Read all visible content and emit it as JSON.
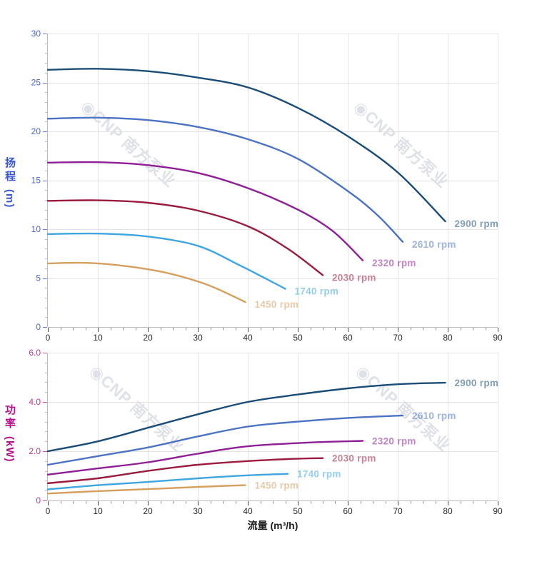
{
  "panel": {
    "background": "#ffffff"
  },
  "axis_titles": {
    "head_label": "扬程",
    "head_unit": "(m)",
    "power_label": "功率",
    "power_unit": "(kW)",
    "x_title": "流量 (m³/h)"
  },
  "watermark": {
    "icon": "cnp-logo-icon",
    "logo_glyph": "◉",
    "text": "CNP 南方泵业",
    "color": "#dfe1e8"
  },
  "style": {
    "grid_color": "#e3e3e5",
    "axis_line_color": "#bcbcbe",
    "x_tick_color": "#4a4a4a",
    "x_minor_tick_color": "#8a8a8a",
    "x_label_color": "#2a2a2a",
    "head_axis_color": "#4565dd",
    "power_axis_color": "#cb2f97",
    "series_label_opacity": 0.55
  },
  "chart_data": [
    {
      "type": "line",
      "id": "head",
      "ylabel": "扬程 (m)",
      "xlabel": "流量 (m³/h)",
      "xlim": [
        0,
        90
      ],
      "ylim": [
        0,
        30
      ],
      "xticks": [
        0,
        10,
        20,
        30,
        40,
        50,
        60,
        70,
        80,
        90
      ],
      "xticklabels": [
        "0",
        "10",
        "20",
        "30",
        "40",
        "50",
        "60",
        "70",
        "80",
        "90"
      ],
      "x_minor_step": 2.5,
      "yticks": [
        0,
        5,
        10,
        15,
        20,
        25,
        30
      ],
      "yticklabels": [
        "0",
        "5",
        "10",
        "15",
        "20",
        "25",
        "30"
      ],
      "y_minor_step": 1,
      "grid": true,
      "legend_position": "inline-end-labels",
      "series": [
        {
          "name": "2900 rpm",
          "color": "#1a4c78",
          "x": [
            0,
            10,
            20,
            30,
            40,
            50,
            60,
            70,
            79.5
          ],
          "y": [
            26.3,
            26.4,
            26.15,
            25.5,
            24.5,
            22.4,
            19.5,
            15.8,
            10.8
          ]
        },
        {
          "name": "2610 rpm",
          "color": "#4b72c4",
          "x": [
            0,
            10,
            20,
            30,
            40,
            50,
            60,
            66,
            71
          ],
          "y": [
            21.3,
            21.4,
            21.15,
            20.45,
            19.2,
            17.2,
            13.9,
            11.4,
            8.7
          ]
        },
        {
          "name": "2320 rpm",
          "color": "#8e1e96",
          "x": [
            0,
            10,
            20,
            30,
            40,
            50,
            57,
            63
          ],
          "y": [
            16.8,
            16.85,
            16.55,
            15.75,
            14.2,
            12.0,
            9.8,
            6.8
          ]
        },
        {
          "name": "2030 rpm",
          "color": "#9b1b3f",
          "x": [
            0,
            10,
            20,
            30,
            40,
            48,
            55
          ],
          "y": [
            12.9,
            12.95,
            12.7,
            11.9,
            10.3,
            8.0,
            5.3
          ]
        },
        {
          "name": "1740 rpm",
          "color": "#3da5e0",
          "x": [
            0,
            10,
            20,
            30,
            38,
            43,
            47.5
          ],
          "y": [
            9.5,
            9.55,
            9.25,
            8.3,
            6.4,
            5.1,
            3.9
          ]
        },
        {
          "name": "1450 rpm",
          "color": "#d79f5e",
          "x": [
            0,
            8,
            16,
            24,
            32,
            39.5
          ],
          "y": [
            6.5,
            6.55,
            6.2,
            5.5,
            4.3,
            2.55
          ]
        }
      ]
    },
    {
      "type": "line",
      "id": "power",
      "ylabel": "功率 (kW)",
      "xlabel": "流量 (m³/h)",
      "xlim": [
        0,
        90
      ],
      "ylim": [
        0,
        6
      ],
      "xticks": [
        0,
        10,
        20,
        30,
        40,
        50,
        60,
        70,
        80,
        90
      ],
      "xticklabels": [
        "0",
        "10",
        "20",
        "30",
        "40",
        "50",
        "60",
        "70",
        "80",
        "90"
      ],
      "x_minor_step": 2.5,
      "yticks": [
        0,
        2,
        4,
        6
      ],
      "yticklabels": [
        "0",
        "2.0",
        "4.0",
        "6.0"
      ],
      "y_minor_step": 0.4,
      "grid": true,
      "legend_position": "inline-end-labels",
      "series": [
        {
          "name": "2900 rpm",
          "color": "#1a4c78",
          "x": [
            0,
            10,
            20,
            30,
            40,
            50,
            60,
            70,
            79.5
          ],
          "y": [
            2.0,
            2.4,
            2.95,
            3.5,
            4.0,
            4.3,
            4.55,
            4.72,
            4.78
          ]
        },
        {
          "name": "2610 rpm",
          "color": "#4b72c4",
          "x": [
            0,
            10,
            20,
            30,
            40,
            50,
            60,
            71
          ],
          "y": [
            1.45,
            1.8,
            2.15,
            2.6,
            3.0,
            3.2,
            3.35,
            3.45
          ]
        },
        {
          "name": "2320 rpm",
          "color": "#8e1e96",
          "x": [
            0,
            10,
            20,
            30,
            40,
            52,
            63
          ],
          "y": [
            1.05,
            1.3,
            1.55,
            1.9,
            2.2,
            2.35,
            2.42
          ]
        },
        {
          "name": "2030 rpm",
          "color": "#9b1b3f",
          "x": [
            0,
            10,
            20,
            30,
            40,
            48,
            55
          ],
          "y": [
            0.7,
            0.9,
            1.2,
            1.45,
            1.6,
            1.68,
            1.72
          ]
        },
        {
          "name": "1740 rpm",
          "color": "#3da5e0",
          "x": [
            0,
            10,
            20,
            30,
            40,
            48
          ],
          "y": [
            0.45,
            0.62,
            0.75,
            0.9,
            1.02,
            1.08
          ]
        },
        {
          "name": "1450 rpm",
          "color": "#d79f5e",
          "x": [
            0,
            10,
            20,
            30,
            39.5
          ],
          "y": [
            0.28,
            0.38,
            0.46,
            0.55,
            0.62
          ]
        }
      ]
    }
  ]
}
